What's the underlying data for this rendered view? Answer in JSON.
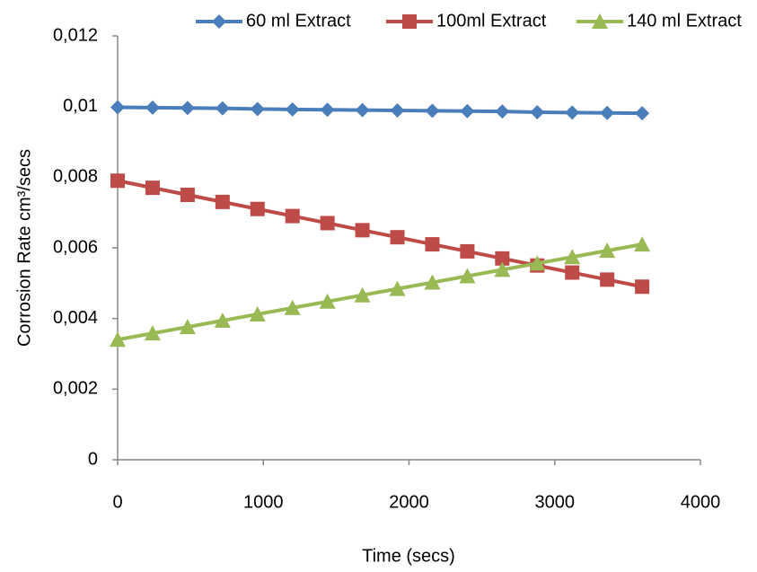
{
  "chart_data": {
    "type": "line",
    "x_label": "Time (secs)",
    "y_label": "Corrosion Rate cm³/secs",
    "x": [
      0,
      240,
      480,
      720,
      960,
      1200,
      1440,
      1680,
      1920,
      2160,
      2400,
      2640,
      2880,
      3120,
      3360,
      3600
    ],
    "series": [
      {
        "name": "60 ml Extract",
        "color": "#4a7ebb",
        "marker": "diamond",
        "values": [
          0.00998,
          0.00997,
          0.00996,
          0.00995,
          0.00993,
          0.00992,
          0.00991,
          0.0099,
          0.00989,
          0.00988,
          0.00987,
          0.00986,
          0.00984,
          0.00983,
          0.00982,
          0.00981
        ]
      },
      {
        "name": "100ml Extract",
        "color": "#be4b48",
        "marker": "square",
        "values": [
          0.0079,
          0.0077,
          0.0075,
          0.0073,
          0.0071,
          0.0069,
          0.0067,
          0.0065,
          0.0063,
          0.0061,
          0.0059,
          0.0057,
          0.0055,
          0.0053,
          0.0051,
          0.0049
        ]
      },
      {
        "name": "140 ml Extract",
        "color": "#98b954",
        "marker": "triangle",
        "values": [
          0.0034,
          0.00358,
          0.00376,
          0.00394,
          0.00412,
          0.0043,
          0.00448,
          0.00466,
          0.00484,
          0.00502,
          0.0052,
          0.00538,
          0.00556,
          0.00574,
          0.00592,
          0.0061
        ]
      }
    ],
    "xlim": [
      0,
      4000
    ],
    "xticks": [
      0,
      1000,
      2000,
      3000,
      4000
    ],
    "ylim": [
      0,
      0.012
    ],
    "yticks": [
      0,
      {
        "value": 0.002,
        "label": "0,002"
      },
      {
        "value": 0.004,
        "label": "0,004"
      },
      {
        "value": 0.006,
        "label": "0,006"
      },
      {
        "value": 0.008,
        "label": "0,008"
      },
      {
        "value": 0.01,
        "label": "0,01"
      },
      {
        "value": 0.012,
        "label": "0,012"
      }
    ],
    "grid": false,
    "legend": "top"
  }
}
